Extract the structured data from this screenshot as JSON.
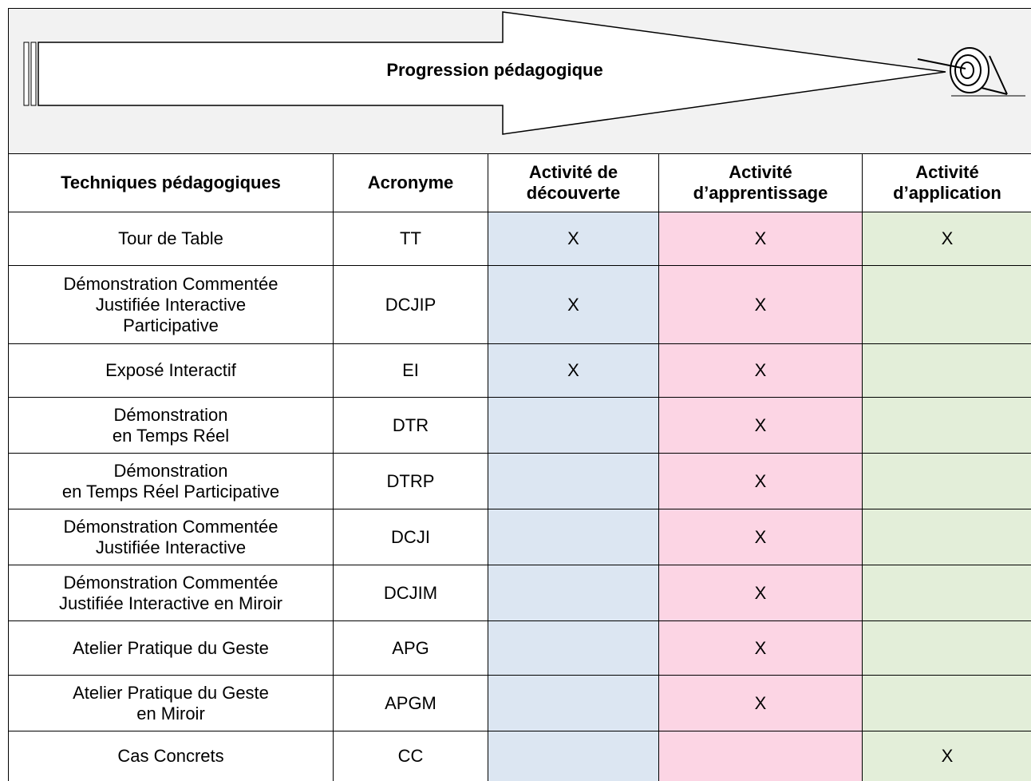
{
  "header": {
    "title": "Progression pédagogique"
  },
  "table": {
    "columns": [
      [
        "Techniques pédagogiques"
      ],
      [
        "Acronyme"
      ],
      [
        "Activité de",
        "découverte"
      ],
      [
        "Activité",
        "d’apprentissage"
      ],
      [
        "Activité",
        "d’application"
      ]
    ],
    "rows": [
      {
        "technique": [
          "Tour de Table"
        ],
        "acronym": "TT",
        "marks": [
          "X",
          "X",
          "X"
        ]
      },
      {
        "technique": [
          "Démonstration Commentée",
          "Justifiée Interactive",
          "Participative"
        ],
        "acronym": "DCJIP",
        "marks": [
          "X",
          "X",
          null
        ]
      },
      {
        "technique": [
          "Exposé Interactif"
        ],
        "acronym": "EI",
        "marks": [
          "X",
          "X",
          null
        ]
      },
      {
        "technique": [
          "Démonstration",
          "en Temps Réel"
        ],
        "acronym": "DTR",
        "marks": [
          null,
          "X",
          null
        ]
      },
      {
        "technique": [
          "Démonstration",
          "en Temps Réel Participative"
        ],
        "acronym": "DTRP",
        "marks": [
          null,
          "X",
          null
        ]
      },
      {
        "technique": [
          "Démonstration Commentée",
          "Justifiée Interactive"
        ],
        "acronym": "DCJI",
        "marks": [
          null,
          "X",
          null
        ]
      },
      {
        "technique": [
          "Démonstration Commentée",
          "Justifiée Interactive en Miroir"
        ],
        "acronym": "DCJIM",
        "marks": [
          null,
          "X",
          null
        ]
      },
      {
        "technique": [
          "Atelier Pratique du Geste"
        ],
        "acronym": "APG",
        "marks": [
          null,
          "X",
          null
        ]
      },
      {
        "technique": [
          "Atelier Pratique du Geste",
          "en Miroir"
        ],
        "acronym": "APGM",
        "marks": [
          null,
          "X",
          null
        ]
      },
      {
        "technique": [
          "Cas Concrets"
        ],
        "acronym": "CC",
        "marks": [
          null,
          null,
          "X"
        ]
      }
    ]
  }
}
